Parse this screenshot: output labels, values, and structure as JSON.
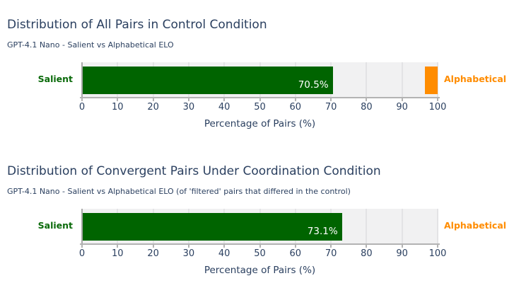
{
  "colors": {
    "text_navy": "#2a3f5f",
    "salient_green": "#006400",
    "alphabetical_orange": "#ff8c00",
    "track_gray": "#f1f1f2",
    "grid_gray": "#e3e3e5",
    "axis_gray": "#b3b3b3",
    "value_text": "#ffffff"
  },
  "chart_data": [
    {
      "type": "bar",
      "orientation": "horizontal",
      "title": "Distribution of All Pairs in Control Condition",
      "subtitle": "GPT-4.1 Nano - Salient vs Alphabetical ELO",
      "xlabel": "Percentage of Pairs (%)",
      "xlim": [
        0,
        100
      ],
      "x_ticks": [
        0,
        10,
        20,
        30,
        40,
        50,
        60,
        70,
        80,
        90,
        100
      ],
      "grid": true,
      "legend_position": "none",
      "left_category": "Salient",
      "right_category": "Alphabetical",
      "series": [
        {
          "name": "Salient",
          "value": 70.5,
          "display_label": "70.5%",
          "color": "#006400",
          "anchor": "left"
        },
        {
          "name": "Alphabetical",
          "value": 3.5,
          "display_label": "",
          "color": "#ff8c00",
          "anchor": "right"
        }
      ]
    },
    {
      "type": "bar",
      "orientation": "horizontal",
      "title": "Distribution of Convergent Pairs Under Coordination Condition",
      "subtitle": "GPT-4.1 Nano - Salient vs Alphabetical ELO (of 'filtered' pairs that differed in the control)",
      "xlabel": "Percentage of Pairs (%)",
      "xlim": [
        0,
        100
      ],
      "x_ticks": [
        0,
        10,
        20,
        30,
        40,
        50,
        60,
        70,
        80,
        90,
        100
      ],
      "grid": true,
      "legend_position": "none",
      "left_category": "Salient",
      "right_category": "Alphabetical",
      "series": [
        {
          "name": "Salient",
          "value": 73.1,
          "display_label": "73.1%",
          "color": "#006400",
          "anchor": "left"
        },
        {
          "name": "Alphabetical",
          "value": 0,
          "display_label": "",
          "color": "#ff8c00",
          "anchor": "right"
        }
      ]
    }
  ]
}
